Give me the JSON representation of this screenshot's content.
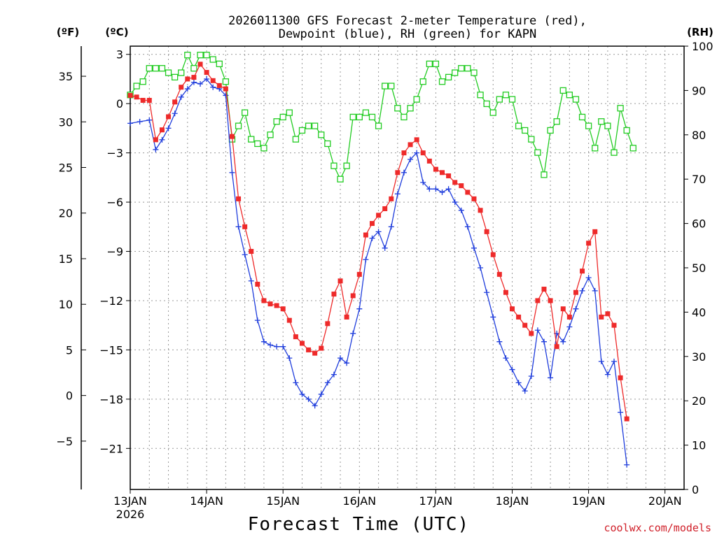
{
  "chart_data": {
    "type": "line",
    "title_line1": "2026011300 GFS Forecast 2-meter Temperature (red),",
    "title_line2": "Dewpoint (blue), RH (green) for KAPN",
    "xlabel": "Forecast Time (UTC)",
    "credit": "coolwx.com/models",
    "units": {
      "fahrenheit": "(ºF)",
      "celsius": "(ºC)",
      "rh": "(RH)"
    },
    "x_ticks": [
      "13JAN",
      "14JAN",
      "15JAN",
      "16JAN",
      "17JAN",
      "18JAN",
      "19JAN",
      "20JAN"
    ],
    "x_sub_label": "2026",
    "xlim_hours": [
      0,
      174
    ],
    "celsius_axis": {
      "ylim": [
        -23.5,
        3.5
      ],
      "ticks": [
        3,
        0,
        -3,
        -6,
        -9,
        -12,
        -15,
        -18,
        -21
      ],
      "labels": [
        "3",
        "0",
        "−3",
        "−6",
        "−9",
        "−12",
        "−15",
        "−18",
        "−21"
      ]
    },
    "fahrenheit_axis": {
      "ticks": [
        35,
        30,
        25,
        20,
        15,
        10,
        5,
        0,
        -5
      ],
      "labels": [
        "35",
        "30",
        "25",
        "20",
        "15",
        "10",
        "5",
        "0",
        "−5"
      ]
    },
    "rh_axis": {
      "ylim": [
        0,
        100
      ],
      "ticks": [
        100,
        90,
        80,
        70,
        60,
        50,
        40,
        30,
        20,
        10,
        0
      ],
      "labels": [
        "100",
        "90",
        "80",
        "70",
        "60",
        "50",
        "40",
        "30",
        "20",
        "10",
        "0"
      ]
    },
    "colors": {
      "temperature": "#ee2a2a",
      "dewpoint": "#1f3ddc",
      "rh": "#22cc22"
    },
    "series": [
      {
        "name": "Temperature",
        "unit": "C",
        "points": [
          [
            0,
            0.5
          ],
          [
            2,
            0.4
          ],
          [
            4,
            0.2
          ],
          [
            6,
            0.2
          ],
          [
            8,
            -2.2
          ],
          [
            10,
            -1.6
          ],
          [
            12,
            -0.8
          ],
          [
            14,
            0.1
          ],
          [
            16,
            1.0
          ],
          [
            18,
            1.5
          ],
          [
            20,
            1.6
          ],
          [
            22,
            2.4
          ],
          [
            24,
            1.9
          ],
          [
            26,
            1.4
          ],
          [
            28,
            1.1
          ],
          [
            30,
            0.9
          ],
          [
            32,
            -2.0
          ],
          [
            34,
            -5.8
          ],
          [
            36,
            -7.5
          ],
          [
            38,
            -9.0
          ],
          [
            40,
            -11.0
          ],
          [
            42,
            -12.0
          ],
          [
            44,
            -12.2
          ],
          [
            46,
            -12.3
          ],
          [
            48,
            -12.5
          ],
          [
            50,
            -13.2
          ],
          [
            52,
            -14.2
          ],
          [
            54,
            -14.6
          ],
          [
            56,
            -15.0
          ],
          [
            58,
            -15.2
          ],
          [
            60,
            -14.9
          ],
          [
            62,
            -13.4
          ],
          [
            64,
            -11.6
          ],
          [
            66,
            -10.8
          ],
          [
            68,
            -13.0
          ],
          [
            70,
            -11.7
          ],
          [
            72,
            -10.4
          ],
          [
            74,
            -8.0
          ],
          [
            76,
            -7.3
          ],
          [
            78,
            -6.8
          ],
          [
            80,
            -6.4
          ],
          [
            82,
            -5.8
          ],
          [
            84,
            -4.2
          ],
          [
            86,
            -3.0
          ],
          [
            88,
            -2.5
          ],
          [
            90,
            -2.2
          ],
          [
            92,
            -3.0
          ],
          [
            94,
            -3.5
          ],
          [
            96,
            -4.0
          ],
          [
            98,
            -4.2
          ],
          [
            100,
            -4.4
          ],
          [
            102,
            -4.8
          ],
          [
            104,
            -5.0
          ],
          [
            106,
            -5.4
          ],
          [
            108,
            -5.8
          ],
          [
            110,
            -6.5
          ],
          [
            112,
            -7.8
          ],
          [
            114,
            -9.2
          ],
          [
            116,
            -10.4
          ],
          [
            118,
            -11.5
          ],
          [
            120,
            -12.5
          ],
          [
            122,
            -13.0
          ],
          [
            124,
            -13.5
          ],
          [
            126,
            -14.0
          ],
          [
            128,
            -12.0
          ],
          [
            130,
            -11.3
          ],
          [
            132,
            -12.0
          ],
          [
            134,
            -14.8
          ],
          [
            136,
            -12.5
          ],
          [
            138,
            -13.0
          ],
          [
            140,
            -11.5
          ],
          [
            142,
            -10.2
          ],
          [
            144,
            -8.5
          ],
          [
            146,
            -7.8
          ],
          [
            148,
            -13.0
          ],
          [
            150,
            -12.8
          ],
          [
            152,
            -13.5
          ],
          [
            154,
            -16.7
          ],
          [
            156,
            -19.2
          ]
        ]
      },
      {
        "name": "Dewpoint",
        "unit": "C",
        "points": [
          [
            0,
            -1.2
          ],
          [
            3,
            -1.1
          ],
          [
            6,
            -1.0
          ],
          [
            8,
            -2.8
          ],
          [
            10,
            -2.2
          ],
          [
            12,
            -1.5
          ],
          [
            14,
            -0.6
          ],
          [
            16,
            0.4
          ],
          [
            18,
            0.9
          ],
          [
            20,
            1.3
          ],
          [
            22,
            1.2
          ],
          [
            24,
            1.5
          ],
          [
            26,
            1.0
          ],
          [
            28,
            0.9
          ],
          [
            30,
            0.5
          ],
          [
            32,
            -4.2
          ],
          [
            34,
            -7.5
          ],
          [
            36,
            -9.2
          ],
          [
            38,
            -10.8
          ],
          [
            40,
            -13.2
          ],
          [
            42,
            -14.5
          ],
          [
            44,
            -14.7
          ],
          [
            46,
            -14.8
          ],
          [
            48,
            -14.8
          ],
          [
            50,
            -15.5
          ],
          [
            52,
            -17.0
          ],
          [
            54,
            -17.7
          ],
          [
            56,
            -18.0
          ],
          [
            58,
            -18.4
          ],
          [
            60,
            -17.7
          ],
          [
            62,
            -17.0
          ],
          [
            64,
            -16.5
          ],
          [
            66,
            -15.5
          ],
          [
            68,
            -15.8
          ],
          [
            70,
            -14.0
          ],
          [
            72,
            -12.5
          ],
          [
            74,
            -9.5
          ],
          [
            76,
            -8.2
          ],
          [
            78,
            -7.8
          ],
          [
            80,
            -8.8
          ],
          [
            82,
            -7.5
          ],
          [
            84,
            -5.5
          ],
          [
            86,
            -4.2
          ],
          [
            88,
            -3.4
          ],
          [
            90,
            -3.0
          ],
          [
            92,
            -4.8
          ],
          [
            94,
            -5.2
          ],
          [
            96,
            -5.2
          ],
          [
            98,
            -5.4
          ],
          [
            100,
            -5.2
          ],
          [
            102,
            -6.0
          ],
          [
            104,
            -6.5
          ],
          [
            106,
            -7.5
          ],
          [
            108,
            -8.8
          ],
          [
            110,
            -10.0
          ],
          [
            112,
            -11.5
          ],
          [
            114,
            -13.0
          ],
          [
            116,
            -14.5
          ],
          [
            118,
            -15.5
          ],
          [
            120,
            -16.2
          ],
          [
            122,
            -17.0
          ],
          [
            124,
            -17.5
          ],
          [
            126,
            -16.6
          ],
          [
            128,
            -13.8
          ],
          [
            130,
            -14.5
          ],
          [
            132,
            -16.7
          ],
          [
            134,
            -14.0
          ],
          [
            136,
            -14.5
          ],
          [
            138,
            -13.6
          ],
          [
            140,
            -12.5
          ],
          [
            142,
            -11.4
          ],
          [
            144,
            -10.6
          ],
          [
            146,
            -11.4
          ],
          [
            148,
            -15.7
          ],
          [
            150,
            -16.5
          ],
          [
            152,
            -15.7
          ],
          [
            154,
            -18.8
          ],
          [
            156,
            -22.0
          ]
        ]
      },
      {
        "name": "RH",
        "unit": "%",
        "points": [
          [
            0,
            89
          ],
          [
            2,
            91
          ],
          [
            4,
            92
          ],
          [
            6,
            95
          ],
          [
            8,
            95
          ],
          [
            10,
            95
          ],
          [
            12,
            94
          ],
          [
            14,
            93
          ],
          [
            16,
            94
          ],
          [
            18,
            98
          ],
          [
            20,
            95
          ],
          [
            22,
            98
          ],
          [
            24,
            98
          ],
          [
            26,
            97
          ],
          [
            28,
            96
          ],
          [
            30,
            92
          ],
          [
            32,
            79
          ],
          [
            34,
            82
          ],
          [
            36,
            85
          ],
          [
            38,
            79
          ],
          [
            40,
            78
          ],
          [
            42,
            77
          ],
          [
            44,
            80
          ],
          [
            46,
            83
          ],
          [
            48,
            84
          ],
          [
            50,
            85
          ],
          [
            52,
            79
          ],
          [
            54,
            81
          ],
          [
            56,
            82
          ],
          [
            58,
            82
          ],
          [
            60,
            80
          ],
          [
            62,
            78
          ],
          [
            64,
            73
          ],
          [
            66,
            70
          ],
          [
            68,
            73
          ],
          [
            70,
            84
          ],
          [
            72,
            84
          ],
          [
            74,
            85
          ],
          [
            76,
            84
          ],
          [
            78,
            82
          ],
          [
            80,
            91
          ],
          [
            82,
            91
          ],
          [
            84,
            86
          ],
          [
            86,
            84
          ],
          [
            88,
            86
          ],
          [
            90,
            88
          ],
          [
            92,
            92
          ],
          [
            94,
            96
          ],
          [
            96,
            96
          ],
          [
            98,
            92
          ],
          [
            100,
            93
          ],
          [
            102,
            94
          ],
          [
            104,
            95
          ],
          [
            106,
            95
          ],
          [
            108,
            94
          ],
          [
            110,
            89
          ],
          [
            112,
            87
          ],
          [
            114,
            85
          ],
          [
            116,
            88
          ],
          [
            118,
            89
          ],
          [
            120,
            88
          ],
          [
            122,
            82
          ],
          [
            124,
            81
          ],
          [
            126,
            79
          ],
          [
            128,
            76
          ],
          [
            130,
            71
          ],
          [
            132,
            81
          ],
          [
            134,
            83
          ],
          [
            136,
            90
          ],
          [
            138,
            89
          ],
          [
            140,
            88
          ],
          [
            142,
            84
          ],
          [
            144,
            82
          ],
          [
            146,
            77
          ],
          [
            148,
            83
          ],
          [
            150,
            82
          ],
          [
            152,
            76
          ],
          [
            154,
            86
          ],
          [
            156,
            81
          ],
          [
            158,
            77
          ]
        ]
      }
    ]
  }
}
